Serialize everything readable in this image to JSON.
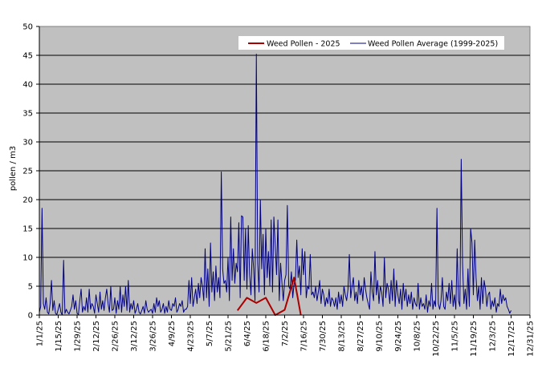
{
  "chart_data": {
    "type": "line",
    "ylabel": "pollen / m3",
    "ylim": [
      0,
      50
    ],
    "yticks": [
      0,
      5,
      10,
      15,
      20,
      25,
      30,
      35,
      40,
      45,
      50
    ],
    "xlim": [
      1,
      365
    ],
    "xtick_labels": [
      "1/1/25",
      "1/15/25",
      "1/29/25",
      "2/12/25",
      "2/26/25",
      "3/12/25",
      "3/26/25",
      "4/9/25",
      "4/23/25",
      "5/7/25",
      "5/21/25",
      "6/4/25",
      "6/18/25",
      "7/2/25",
      "7/16/25",
      "7/30/25",
      "8/13/25",
      "8/27/25",
      "9/10/25",
      "9/24/25",
      "10/8/25",
      "10/22/25",
      "11/5/25",
      "11/19/25",
      "12/3/25",
      "12/17/25",
      "12/31/25"
    ],
    "grid": "horizontal",
    "legend_position": "top-right",
    "colors": {
      "plot_bg": "#c0c0c0",
      "weed_2025": "#aa0000",
      "average": "#000080"
    },
    "series": [
      {
        "name": "Weed Pollen - 2025",
        "color": "#aa0000",
        "x": [
          "5/28/25",
          "6/4/25",
          "6/11/25",
          "6/18/25",
          "6/25/25",
          "7/2/25",
          "7/9/25",
          "7/14/25"
        ],
        "values": [
          0.8,
          3.0,
          2.1,
          3.0,
          0.0,
          0.9,
          6.5,
          0.0
        ]
      },
      {
        "name": "Weed Pollen Average (1999-2025)",
        "color": "#000080",
        "x_start": "1/1/25",
        "x_step_days": 1,
        "values": [
          0.5,
          1.5,
          18.5,
          2.0,
          1.0,
          3.0,
          0.5,
          0.2,
          2.0,
          6.0,
          0.8,
          2.5,
          0.3,
          0.1,
          1.0,
          2.0,
          0.5,
          0.0,
          9.5,
          0.3,
          1.0,
          0.5,
          0.2,
          0.8,
          1.5,
          3.5,
          1.0,
          2.5,
          0.3,
          0.1,
          2.5,
          4.5,
          0.5,
          1.5,
          0.8,
          3.0,
          0.5,
          4.5,
          1.0,
          2.0,
          1.5,
          0.3,
          3.5,
          2.0,
          0.5,
          4.0,
          1.0,
          2.5,
          0.8,
          3.0,
          4.5,
          2.0,
          0.5,
          5.0,
          0.8,
          1.0,
          3.0,
          0.3,
          2.5,
          1.0,
          5.0,
          0.5,
          3.5,
          1.5,
          5.0,
          0.8,
          6.0,
          0.5,
          2.0,
          1.0,
          2.5,
          0.3,
          1.0,
          2.0,
          0.5,
          0.2,
          0.8,
          1.5,
          0.3,
          2.5,
          1.0,
          0.5,
          0.8,
          1.0,
          0.3,
          2.0,
          0.5,
          3.0,
          1.5,
          2.5,
          0.5,
          1.0,
          2.0,
          0.3,
          1.5,
          0.5,
          2.5,
          1.0,
          0.8,
          2.0,
          1.5,
          3.0,
          0.5,
          1.0,
          2.0,
          1.5,
          2.5,
          0.5,
          1.0,
          1.0,
          1.5,
          6.0,
          2.0,
          6.5,
          1.5,
          3.0,
          4.5,
          2.0,
          5.5,
          3.0,
          6.5,
          5.0,
          2.5,
          11.5,
          3.0,
          8.0,
          1.5,
          12.5,
          4.0,
          7.5,
          2.5,
          8.5,
          4.0,
          6.5,
          3.0,
          24.8,
          8.0,
          5.5,
          6.0,
          4.0,
          10.0,
          2.5,
          17.0,
          6.0,
          11.5,
          5.5,
          9.0,
          7.5,
          16.0,
          3.0,
          17.2,
          17.0,
          6.0,
          15.0,
          4.5,
          15.5,
          7.0,
          3.5,
          11.5,
          8.0,
          2.5,
          45.2,
          9.0,
          4.0,
          20.0,
          8.0,
          14.0,
          3.5,
          15.0,
          6.5,
          11.0,
          5.0,
          16.5,
          4.0,
          17.0,
          12.0,
          7.0,
          16.5,
          2.5,
          9.0,
          5.5,
          2.5,
          6.0,
          7.0,
          19.0,
          5.0,
          4.5,
          7.5,
          3.0,
          5.5,
          6.0,
          13.0,
          6.5,
          8.5,
          3.5,
          11.5,
          7.0,
          11.0,
          3.0,
          5.0,
          4.5,
          10.5,
          3.5,
          4.0,
          3.0,
          5.0,
          2.5,
          4.0,
          6.0,
          2.0,
          4.5,
          3.5,
          1.5,
          3.0,
          2.0,
          4.5,
          1.5,
          3.0,
          2.5,
          1.5,
          3.0,
          1.0,
          4.0,
          2.0,
          3.5,
          1.5,
          5.0,
          3.5,
          2.5,
          4.5,
          10.5,
          3.0,
          5.0,
          6.5,
          2.5,
          4.0,
          2.0,
          6.0,
          3.5,
          5.0,
          2.5,
          6.5,
          4.5,
          3.0,
          2.0,
          1.0,
          7.5,
          4.0,
          2.5,
          11.0,
          3.5,
          6.0,
          2.0,
          5.0,
          4.0,
          1.5,
          10.0,
          3.0,
          5.5,
          4.5,
          2.0,
          6.0,
          2.5,
          8.0,
          1.5,
          6.0,
          3.5,
          2.0,
          4.5,
          1.0,
          5.5,
          2.5,
          4.5,
          1.5,
          3.5,
          2.0,
          4.0,
          1.0,
          3.0,
          2.0,
          1.5,
          5.5,
          1.0,
          3.0,
          1.5,
          2.0,
          1.0,
          3.5,
          0.5,
          2.5,
          1.5,
          5.5,
          1.0,
          2.5,
          1.5,
          18.5,
          2.0,
          1.0,
          2.5,
          6.5,
          1.5,
          1.0,
          4.0,
          2.5,
          5.5,
          2.0,
          6.0,
          1.5,
          3.5,
          1.0,
          11.5,
          2.5,
          1.5,
          27.0,
          9.0,
          2.0,
          4.5,
          1.0,
          8.0,
          1.5,
          15.0,
          12.5,
          3.5,
          13.0,
          6.5,
          2.5,
          5.0,
          1.0,
          6.5,
          2.0,
          6.0,
          4.5,
          1.5,
          3.5,
          4.0,
          1.0,
          2.5,
          1.5,
          3.0,
          0.5,
          2.0,
          1.5,
          4.5,
          2.0,
          3.5,
          2.5,
          3.0,
          1.5,
          1.0,
          0.3,
          0.8
        ]
      }
    ]
  }
}
